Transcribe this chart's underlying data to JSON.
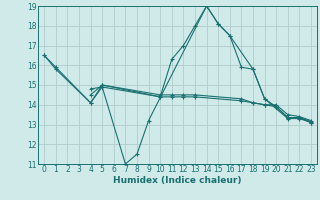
{
  "background_color": "#d0eaea",
  "grid_color": "#b0cccc",
  "line_color": "#1a7070",
  "xlabel": "Humidex (Indice chaleur)",
  "xlim": [
    -0.5,
    23.5
  ],
  "ylim": [
    11,
    19
  ],
  "yticks": [
    11,
    12,
    13,
    14,
    15,
    16,
    17,
    18,
    19
  ],
  "xticks": [
    0,
    1,
    2,
    3,
    4,
    5,
    6,
    7,
    8,
    9,
    10,
    11,
    12,
    13,
    14,
    15,
    16,
    17,
    18,
    19,
    20,
    21,
    22,
    23
  ],
  "line1_x": [
    0,
    1,
    4,
    5,
    7,
    8,
    9,
    14,
    15,
    16,
    18,
    19,
    21,
    22,
    23
  ],
  "line1_y": [
    16.5,
    15.8,
    14.1,
    14.9,
    11.0,
    11.5,
    13.2,
    19.0,
    18.1,
    17.5,
    15.8,
    14.3,
    13.3,
    13.3,
    13.1
  ],
  "line2_x": [
    4,
    5,
    10,
    11,
    12,
    13,
    17,
    18,
    19,
    20,
    21,
    22,
    23
  ],
  "line2_y": [
    14.8,
    14.9,
    14.4,
    14.4,
    14.4,
    14.4,
    14.2,
    14.1,
    14.0,
    13.9,
    13.35,
    13.35,
    13.1
  ],
  "line3_x": [
    4,
    5,
    10,
    11,
    12,
    13,
    17,
    18,
    19,
    20,
    21,
    22,
    23
  ],
  "line3_y": [
    14.5,
    15.0,
    14.5,
    14.5,
    14.5,
    14.5,
    14.3,
    14.1,
    14.0,
    14.0,
    13.5,
    13.4,
    13.2
  ],
  "line4_x": [
    0,
    1,
    4,
    5,
    10,
    11,
    12,
    13,
    14,
    15,
    16,
    17,
    18,
    19,
    20,
    21,
    22,
    23
  ],
  "line4_y": [
    16.5,
    15.9,
    14.1,
    15.0,
    14.4,
    16.3,
    17.0,
    18.0,
    19.0,
    18.1,
    17.5,
    15.9,
    15.8,
    14.3,
    13.9,
    13.35,
    13.35,
    13.15
  ]
}
